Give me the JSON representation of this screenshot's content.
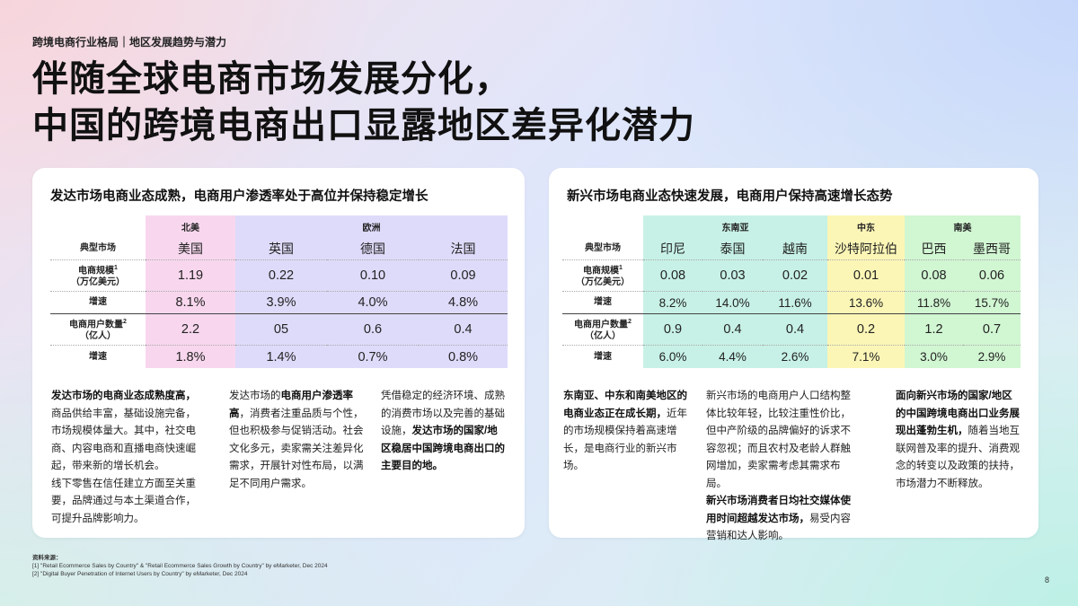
{
  "breadcrumb": "跨境电商行业格局｜地区发展趋势与潜力",
  "title": {
    "line1": "伴随全球电商市场发展分化，",
    "line2": "中国的跨境电商出口显露地区差异化潜力"
  },
  "left_card": {
    "title": "发达市场电商业态成熟，电商用户渗透率处于高位并保持稳定增长",
    "groups": [
      "北美",
      "欧洲"
    ],
    "row_labels": {
      "market": "典型市场",
      "scale_line1": "电商规模",
      "scale_sup": "1",
      "scale_line2": "（万亿美元）",
      "growth": "增速",
      "users_line1": "电商用户数量",
      "users_sup": "2",
      "users_line2": "（亿人）",
      "users_growth": "增速"
    },
    "markets": [
      "美国",
      "英国",
      "德国",
      "法国"
    ],
    "scale": [
      "1.19",
      "0.22",
      "0.10",
      "0.09"
    ],
    "scale_growth": [
      "8.1%",
      "3.9%",
      "4.0%",
      "4.8%"
    ],
    "users": [
      "2.2",
      "05",
      "0.6",
      "0.4"
    ],
    "users_growth": [
      "1.8%",
      "1.4%",
      "0.7%",
      "0.8%"
    ],
    "col1": {
      "bold": "发达市场的电商业态成熟度高，",
      "p1": "商品供给丰富，基础设施完备，市场规模体量大。其中，社交电商、内容电商和直播电商快速崛起，带来新的增长机会。",
      "p2": "线下零售在信任建立方面至关重要，品牌通过与本土渠道合作，可提升品牌影响力。"
    },
    "col2": {
      "a": "发达市场的",
      "b": "电商用户渗透率高",
      "c": "，消费者注重品质与个性，但也积极参与促销活动。社会文化多元，卖家需关注差异化需求，开展针对性布局，以满足不同用户需求。"
    },
    "col3": {
      "a": "凭借稳定的经济环境、成熟的消费市场以及完善的基础设施，",
      "b": "发达市场的国家/地区稳居中国跨境电商出口的主要目的地。"
    }
  },
  "right_card": {
    "title": "新兴市场电商业态快速发展，电商用户保持高速增长态势",
    "groups": [
      "东南亚",
      "中东",
      "南美"
    ],
    "row_labels": {
      "market": "典型市场",
      "scale_line1": "电商规模",
      "scale_sup": "1",
      "scale_line2": "（万亿美元）",
      "growth": "增速",
      "users_line1": "电商用户数量",
      "users_sup": "2",
      "users_line2": "（亿人）",
      "users_growth": "增速"
    },
    "markets": [
      "印尼",
      "泰国",
      "越南",
      "沙特阿拉伯",
      "巴西",
      "墨西哥"
    ],
    "scale": [
      "0.08",
      "0.03",
      "0.02",
      "0.01",
      "0.08",
      "0.06"
    ],
    "scale_growth": [
      "8.2%",
      "14.0%",
      "11.6%",
      "13.6%",
      "11.8%",
      "15.7%"
    ],
    "users": [
      "0.9",
      "0.4",
      "0.4",
      "0.2",
      "1.2",
      "0.7"
    ],
    "users_growth": [
      "6.0%",
      "4.4%",
      "2.6%",
      "7.1%",
      "3.0%",
      "2.9%"
    ],
    "col1": {
      "bold": "东南亚、中东和南美地区的电商业态正在成长期，",
      "rest": "近年的市场规模保持着高速增长，是电商行业的新兴市场。"
    },
    "col2": {
      "p1": "新兴市场的电商用户人口结构整体比较年轻，比较注重性价比，但中产阶级的品牌偏好的诉求不容忽视；而且农村及老龄人群触网增加，卖家需考虑其需求布局。",
      "bold": "新兴市场消费者日均社交媒体使用时间超越发达市场，",
      "rest": "易受内容营销和达人影响。"
    },
    "col3": {
      "bold": "面向新兴市场的国家/地区的中国跨境电商出口业务展现出蓬勃生机，",
      "rest": "随着当地互联网普及率的提升、消费观念的转变以及政策的扶持，市场潜力不断释放。"
    }
  },
  "sources": {
    "heading": "资料来源：",
    "line1": "[1] \"Retail Ecommerce Sales by Country\" & \"Retail Ecommerce Sales Growth by Country\" by eMarketer, Dec 2024",
    "line2": "[2] \"Digital Buyer Penetration of Internet Users by Country\" by eMarketer, Dec 2024"
  },
  "page_number": "8"
}
